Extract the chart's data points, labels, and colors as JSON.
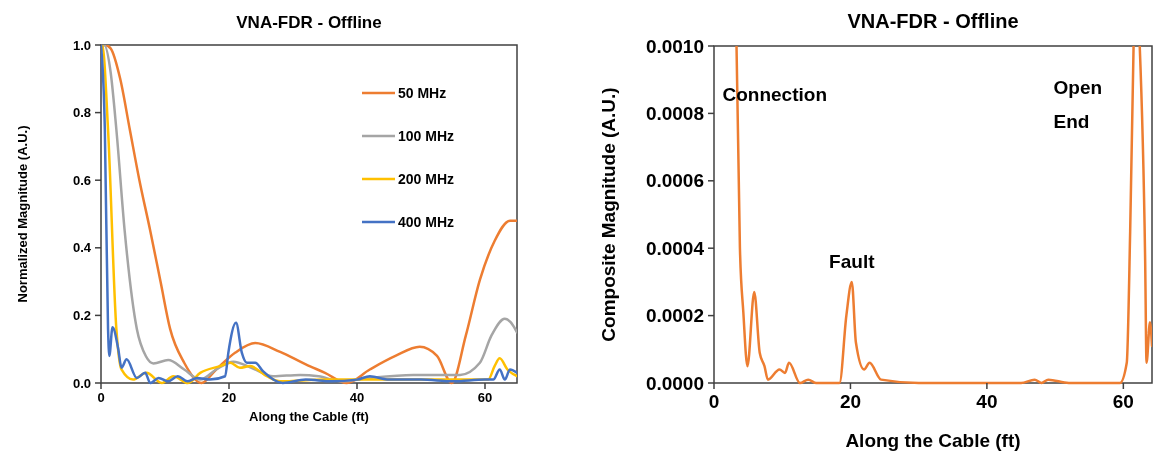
{
  "chart_data": [
    {
      "type": "line",
      "title": "VNA-FDR - Offline",
      "xlabel": "Along the Cable (ft)",
      "ylabel": "Normalized Magnitude (A.U.)",
      "xlim": [
        0,
        65
      ],
      "ylim": [
        0,
        1
      ],
      "xticks": [
        0,
        20,
        40,
        60
      ],
      "yticks": [
        {
          "value": 0,
          "label": "0.0"
        },
        {
          "value": 0.2,
          "label": "0.2"
        },
        {
          "value": 0.4,
          "label": "0.4"
        },
        {
          "value": 0.6,
          "label": "0.6"
        },
        {
          "value": 0.8,
          "label": "0.8"
        },
        {
          "value": 1,
          "label": "1.0"
        }
      ],
      "grid": false,
      "legend": "top right",
      "marker": "none",
      "line_style": "solid",
      "series": [
        {
          "name": "50 MHz",
          "color": "#ed7d31",
          "x": [
            0,
            0.6,
            1.5,
            3,
            4.5,
            6,
            7.7,
            9.3,
            10.8,
            13,
            15.7,
            18,
            21,
            24.1,
            28,
            32,
            35,
            38.4,
            42,
            46,
            49.8,
            52.5,
            54.8,
            57,
            59.2,
            61.5,
            63.9,
            65
          ],
          "values": [
            1,
            1,
            0.99,
            0.9,
            0.75,
            0.6,
            0.45,
            0.3,
            0.16,
            0.06,
            0,
            0.04,
            0.09,
            0.118,
            0.092,
            0.055,
            0.03,
            0,
            0.04,
            0.08,
            0.107,
            0.08,
            0,
            0.14,
            0.305,
            0.42,
            0.48,
            0.48
          ]
        },
        {
          "name": "100 MHz",
          "color": "#a5a5a5",
          "x": [
            0,
            0.5,
            1.5,
            2.4,
            3.7,
            5.6,
            7,
            8.2,
            10.5,
            13,
            15.5,
            18,
            20.7,
            23.5,
            26.9,
            31.1,
            34,
            37.5,
            42,
            48.8,
            56.1,
            59.2,
            61,
            63.1,
            64,
            65
          ],
          "values": [
            0.98,
            1,
            0.92,
            0.75,
            0.45,
            0.16,
            0.08,
            0.058,
            0.068,
            0.04,
            0.01,
            0.04,
            0.063,
            0.045,
            0.02,
            0.024,
            0.02,
            0.005,
            0.015,
            0.024,
            0.024,
            0.06,
            0.14,
            0.19,
            0.18,
            0.15
          ]
        },
        {
          "name": "200 MHz",
          "color": "#ffc000",
          "x": [
            0,
            0.2,
            1.1,
            2.4,
            3.2,
            5,
            7.1,
            9.5,
            11.3,
            13.6,
            15.5,
            18.6,
            20.2,
            21.7,
            23.3,
            25.9,
            28,
            35,
            45,
            55,
            60.5,
            61.5,
            62.3,
            63.5,
            65
          ],
          "values": [
            0.98,
            1,
            0.75,
            0.16,
            0.04,
            0.01,
            0.03,
            0,
            0.02,
            0,
            0.03,
            0.05,
            0.06,
            0.045,
            0.05,
            0.02,
            0.005,
            0.01,
            0.01,
            0.01,
            0.01,
            0.05,
            0.073,
            0.04,
            0.02
          ]
        },
        {
          "name": "400 MHz",
          "color": "#4472c4",
          "x": [
            0,
            0.6,
            1.1,
            1.3,
            1.8,
            2.7,
            3.2,
            4,
            5.6,
            6.9,
            7.7,
            9,
            10.5,
            12,
            13.5,
            15,
            17,
            19.4,
            19.9,
            21.1,
            22,
            22.8,
            24.1,
            25.3,
            28.4,
            32,
            36,
            40,
            42,
            45,
            50,
            55,
            60,
            61.3,
            62.3,
            63.1,
            63.9,
            65
          ],
          "values": [
            1,
            0.75,
            0.16,
            0.08,
            0.165,
            0.1,
            0.045,
            0.07,
            0.015,
            0.03,
            0,
            0.015,
            0.005,
            0.02,
            0.005,
            0.015,
            0.01,
            0.02,
            0.09,
            0.178,
            0.09,
            0.06,
            0.06,
            0.035,
            0,
            0.01,
            0.005,
            0.01,
            0.02,
            0.01,
            0.01,
            0.005,
            0.01,
            0.01,
            0.04,
            0.01,
            0.04,
            0.03
          ]
        }
      ]
    },
    {
      "type": "line",
      "title": "VNA-FDR - Offline",
      "xlabel": "Along the Cable (ft)",
      "ylabel": "Composite Magnitude (A.U.)",
      "xlim": [
        0,
        64.2
      ],
      "ylim": [
        0,
        0.001
      ],
      "xticks": [
        0,
        20,
        40,
        60
      ],
      "yticks": [
        {
          "value": 0,
          "label": "0.0000"
        },
        {
          "value": 0.0002,
          "label": "0.0002"
        },
        {
          "value": 0.0004,
          "label": "0.0004"
        },
        {
          "value": 0.0006,
          "label": "0.0006"
        },
        {
          "value": 0.0008,
          "label": "0.0008"
        },
        {
          "value": 0.001,
          "label": "0.0010"
        }
      ],
      "grid": false,
      "legend": false,
      "marker": "none",
      "line_style": "solid",
      "annotations": [
        {
          "text": "Connection",
          "x": 3.3,
          "y": 0.001
        },
        {
          "text": "Fault",
          "x": 20.2,
          "y": 0.000299
        },
        {
          "text": "Open End",
          "x": 61.5,
          "y": 0.001
        }
      ],
      "series": [
        {
          "color": "#ed7d31",
          "x": [
            3.3,
            3.8,
            4.3,
            4.9,
            5.9,
            6.7,
            7.4,
            7.9,
            9.6,
            10.4,
            11,
            12.6,
            13.8,
            15,
            18.4,
            19.4,
            20.2,
            20.8,
            22,
            22.8,
            24.5,
            30,
            40,
            45,
            47,
            48,
            49,
            52,
            59.5,
            60.5,
            61,
            61.5,
            62,
            62.4,
            63.2,
            63.4,
            63.9,
            64.2
          ],
          "values": [
            0.001,
            0.0004,
            0.00021,
            5e-05,
            0.00027,
            9e-05,
            5e-05,
            1e-05,
            4e-05,
            3e-05,
            6e-05,
            0,
            1e-05,
            0,
            0,
            0.0002,
            0.0003,
            0.00012,
            4e-05,
            6e-05,
            1e-05,
            0,
            0,
            0,
            1e-05,
            0,
            1e-05,
            0,
            0,
            6e-05,
            0.00045,
            0.001,
            null,
            0.001,
            0.00036,
            6e-05,
            0.00018,
            0.00011
          ]
        }
      ]
    }
  ]
}
